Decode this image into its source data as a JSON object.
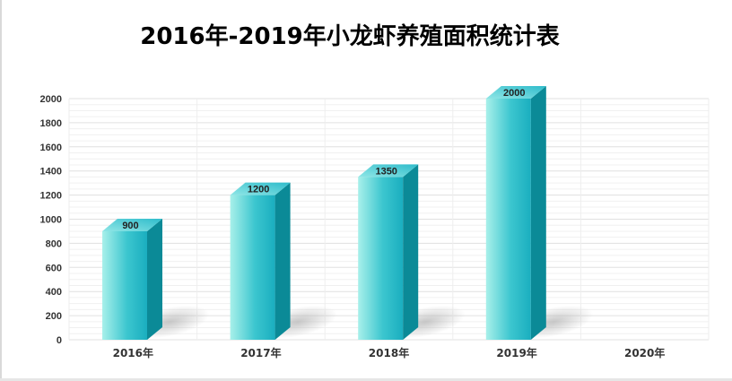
{
  "chart_data": {
    "type": "bar",
    "title": "2016年-2019年小龙虾养殖面积统计表",
    "categories": [
      "2016年",
      "2017年",
      "2018年",
      "2019年",
      "2020年"
    ],
    "values": [
      900,
      1200,
      1350,
      2000,
      null
    ],
    "data_labels": [
      "900",
      "1200",
      "1350",
      "2000",
      ""
    ],
    "ylim": [
      0,
      2000
    ],
    "yticks": [
      0,
      200,
      400,
      600,
      800,
      1000,
      1200,
      1400,
      1600,
      1800,
      2000
    ],
    "grid": true,
    "style": "3d-column",
    "colors": {
      "bar_light": "#a8f0ea",
      "bar_mid": "#3cc6cf",
      "bar_dark": "#1aaebf",
      "bar_side": "#0b8a97",
      "bar_top": "#5fd3dc",
      "grid": "#e3e3e3",
      "shadow": "#bdbdbd"
    }
  }
}
